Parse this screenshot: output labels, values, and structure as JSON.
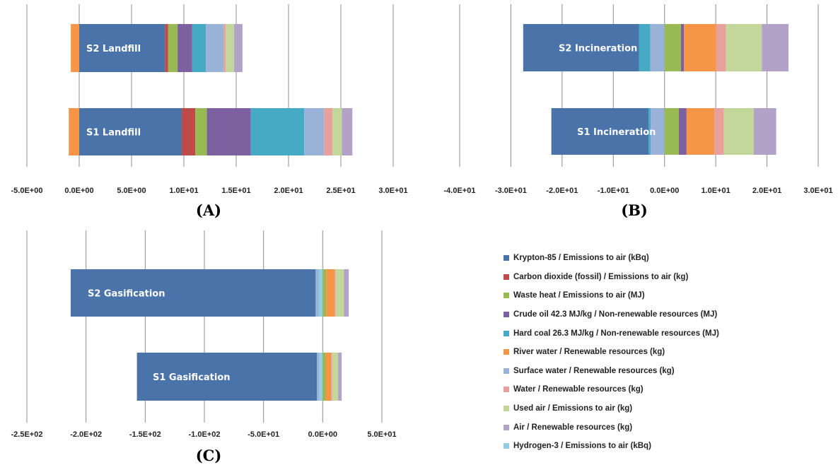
{
  "legend": [
    {
      "name": "Krypton-85 / Emissions to air (kBq)",
      "color": "#4a73aa"
    },
    {
      "name": "Carbon dioxide (fossil) / Emissions to air (kg)",
      "color": "#be4b48"
    },
    {
      "name": "Waste heat / Emissions to air (MJ)",
      "color": "#98b954"
    },
    {
      "name": "Crude oil 42.3 MJ/kg / Non-renewable resources (MJ)",
      "color": "#7d60a0"
    },
    {
      "name": "Hard coal 26.3 MJ/kg / Non-renewable resources (MJ)",
      "color": "#46aac5"
    },
    {
      "name": "River water / Renewable resources (kg)",
      "color": "#f69546"
    },
    {
      "name": "Surface water / Renewable resources (kg)",
      "color": "#9bb2d8"
    },
    {
      "name": "Water / Renewable resources (kg)",
      "color": "#e6a19c"
    },
    {
      "name": "Used air / Emissions to air (kg)",
      "color": "#c4d79b"
    },
    {
      "name": "Air / Renewable resources (kg)",
      "color": "#b2a2c7"
    },
    {
      "name": "Hydrogen-3 / Emissions to air (kBq)",
      "color": "#93cddd"
    }
  ],
  "chart_data": [
    {
      "type": "bar",
      "orientation": "horizontal",
      "stacked": true,
      "panel_label": "(A)",
      "xlim": [
        -5,
        30
      ],
      "xticks": [
        -5,
        0,
        5,
        10,
        15,
        20,
        25,
        30
      ],
      "xtick_labels": [
        "-5.0E+00",
        "0.0E+00",
        "5.0E+00",
        "1.0E+01",
        "1.5E+01",
        "2.0E+01",
        "2.5E+01",
        "3.0E+01"
      ],
      "grid": true,
      "bars": [
        {
          "label": "S2 Landfill",
          "segments": [
            {
              "series": "River water / Renewable resources (kg)",
              "value": -0.8
            },
            {
              "series": "Krypton-85 / Emissions to air (kBq)",
              "value": 8.2
            },
            {
              "series": "Carbon dioxide (fossil) / Emissions to air (kg)",
              "value": 0.3
            },
            {
              "series": "Waste heat / Emissions to air (MJ)",
              "value": 0.9
            },
            {
              "series": "Crude oil 42.3 MJ/kg / Non-renewable resources (MJ)",
              "value": 1.4
            },
            {
              "series": "Hard coal 26.3 MJ/kg / Non-renewable resources (MJ)",
              "value": 1.3
            },
            {
              "series": "Surface water / Renewable resources (kg)",
              "value": 1.7
            },
            {
              "series": "Water / Renewable resources (kg)",
              "value": 0.2
            },
            {
              "series": "Used air / Emissions to air (kg)",
              "value": 0.8
            },
            {
              "series": "Air / Renewable resources (kg)",
              "value": 0.8
            }
          ]
        },
        {
          "label": "S1 Landfill",
          "segments": [
            {
              "series": "River water / Renewable resources (kg)",
              "value": -1.0
            },
            {
              "series": "Krypton-85 / Emissions to air (kBq)",
              "value": 9.8
            },
            {
              "series": "Carbon dioxide (fossil) / Emissions to air (kg)",
              "value": 1.3
            },
            {
              "series": "Waste heat / Emissions to air (MJ)",
              "value": 1.1
            },
            {
              "series": "Crude oil 42.3 MJ/kg / Non-renewable resources (MJ)",
              "value": 4.2
            },
            {
              "series": "Hard coal 26.3 MJ/kg / Non-renewable resources (MJ)",
              "value": 5.1
            },
            {
              "series": "Surface water / Renewable resources (kg)",
              "value": 1.9
            },
            {
              "series": "Water / Renewable resources (kg)",
              "value": 0.8
            },
            {
              "series": "Used air / Emissions to air (kg)",
              "value": 0.9
            },
            {
              "series": "Air / Renewable resources (kg)",
              "value": 1.0
            }
          ]
        }
      ]
    },
    {
      "type": "bar",
      "orientation": "horizontal",
      "stacked": true,
      "panel_label": "(B)",
      "xlim": [
        -40,
        30
      ],
      "xticks": [
        -40,
        -30,
        -20,
        -10,
        0,
        10,
        20,
        30
      ],
      "xtick_labels": [
        "-4.0E+01",
        "-3.0E+01",
        "-2.0E+01",
        "-1.0E+01",
        "0.0E+00",
        "1.0E+01",
        "2.0E+01",
        "3.0E+01"
      ],
      "grid": true,
      "bars": [
        {
          "label": "S2 Incineration",
          "segments": [
            {
              "series": "Surface water / Renewable resources (kg)",
              "value": -2.8
            },
            {
              "series": "Hard coal 26.3 MJ/kg / Non-renewable resources (MJ)",
              "value": -2.2
            },
            {
              "series": "Krypton-85 / Emissions to air (kBq)",
              "value": -22.6
            },
            {
              "series": "Waste heat / Emissions to air (MJ)",
              "value": 3.2
            },
            {
              "series": "Crude oil 42.3 MJ/kg / Non-renewable resources (MJ)",
              "value": 0.6
            },
            {
              "series": "River water / Renewable resources (kg)",
              "value": 6.3
            },
            {
              "series": "Water / Renewable resources (kg)",
              "value": 1.9
            },
            {
              "series": "Used air / Emissions to air (kg)",
              "value": 7.0
            },
            {
              "series": "Air / Renewable resources (kg)",
              "value": 5.2
            }
          ]
        },
        {
          "label": "S1 Incineration",
          "segments": [
            {
              "series": "Surface water / Renewable resources (kg)",
              "value": -2.7
            },
            {
              "series": "Hard coal 26.3 MJ/kg / Non-renewable resources (MJ)",
              "value": -0.4
            },
            {
              "series": "Krypton-85 / Emissions to air (kBq)",
              "value": -19.0
            },
            {
              "series": "Waste heat / Emissions to air (MJ)",
              "value": 2.8
            },
            {
              "series": "Crude oil 42.3 MJ/kg / Non-renewable resources (MJ)",
              "value": 1.5
            },
            {
              "series": "River water / Renewable resources (kg)",
              "value": 5.4
            },
            {
              "series": "Water / Renewable resources (kg)",
              "value": 1.9
            },
            {
              "series": "Used air / Emissions to air (kg)",
              "value": 5.8
            },
            {
              "series": "Air / Renewable resources (kg)",
              "value": 4.4
            }
          ]
        }
      ]
    },
    {
      "type": "bar",
      "orientation": "horizontal",
      "stacked": true,
      "panel_label": "(C)",
      "xlim": [
        -250,
        50
      ],
      "xticks": [
        -250,
        -200,
        -150,
        -100,
        -50,
        0,
        50
      ],
      "xtick_labels": [
        "-2.5E+02",
        "-2.0E+02",
        "-1.5E+02",
        "-1.0E+02",
        "-5.0E+01",
        "0.0E+00",
        "5.0E+01"
      ],
      "grid": true,
      "bars": [
        {
          "label": "S2 Gasification",
          "segments": [
            {
              "series": "Hydrogen-3 / Emissions to air (kBq)",
              "value": -3.5
            },
            {
              "series": "Surface water / Renewable resources (kg)",
              "value": -2.5
            },
            {
              "series": "Krypton-85 / Emissions to air (kBq)",
              "value": -207
            },
            {
              "series": "Waste heat / Emissions to air (MJ)",
              "value": 3.0
            },
            {
              "series": "River water / Renewable resources (kg)",
              "value": 7.0
            },
            {
              "series": "Water / Renewable resources (kg)",
              "value": 1.0
            },
            {
              "series": "Used air / Emissions to air (kg)",
              "value": 7.0
            },
            {
              "series": "Air / Renewable resources (kg)",
              "value": 4.0
            }
          ]
        },
        {
          "label": "S1 Gasification",
          "segments": [
            {
              "series": "Hydrogen-3 / Emissions to air (kBq)",
              "value": -3.0
            },
            {
              "series": "Surface water / Renewable resources (kg)",
              "value": -2.0
            },
            {
              "series": "Krypton-85 / Emissions to air (kBq)",
              "value": -152
            },
            {
              "series": "Waste heat / Emissions to air (MJ)",
              "value": 2.5
            },
            {
              "series": "River water / Renewable resources (kg)",
              "value": 4.5
            },
            {
              "series": "Water / Renewable resources (kg)",
              "value": 1.0
            },
            {
              "series": "Used air / Emissions to air (kg)",
              "value": 5.0
            },
            {
              "series": "Air / Renewable resources (kg)",
              "value": 3.0
            }
          ]
        }
      ]
    }
  ]
}
